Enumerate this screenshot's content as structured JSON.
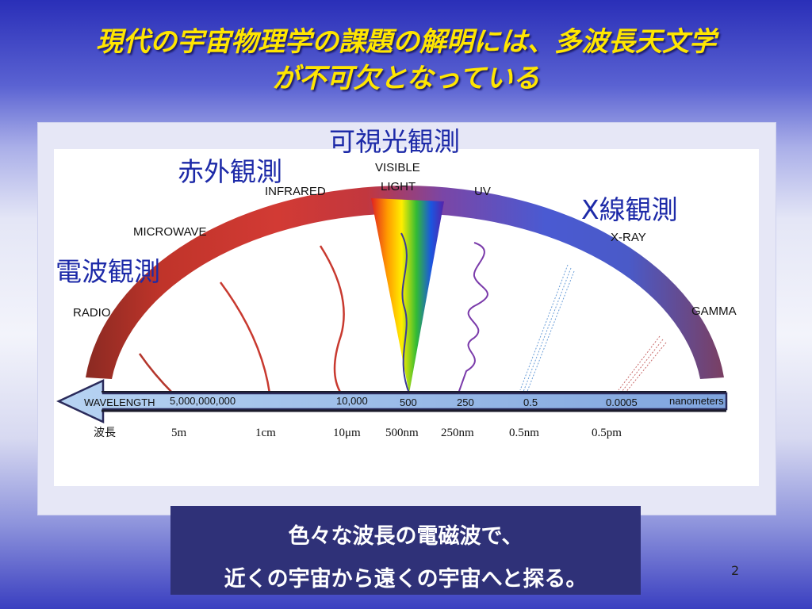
{
  "slide": {
    "title_line1": "現代の宇宙物理学の課題の解明には、多波長天文学",
    "title_line2": "が不可欠となっている",
    "page_number": "2"
  },
  "observation_labels": {
    "visible": "可視光観測",
    "infrared": "赤外観測",
    "xray": "X線観測",
    "radio": "電波観測"
  },
  "spectrum": {
    "bands": {
      "radio": "RADIO",
      "microwave": "MICROWAVE",
      "infrared": "INFRARED",
      "visible_1": "VISIBLE",
      "visible_2": "LIGHT",
      "uv": "UV",
      "xray": "X-RAY",
      "gamma": "GAMMA"
    },
    "axis_title": "WAVELENGTH",
    "axis_values": [
      "5,000,000,000",
      "10,000",
      "500",
      "250",
      "0.5",
      "0.0005"
    ],
    "axis_unit": "nanometers",
    "wavelength_header": "波長",
    "wavelength_values": [
      "5m",
      "1cm",
      "10μm",
      "500nm",
      "250nm",
      "0.5nm",
      "0.5pm"
    ]
  },
  "caption": {
    "line1": "色々な波長の電磁波で、",
    "line2": "近くの宇宙から遠くの宇宙へと探る。"
  },
  "colors": {
    "title": "#ffe600",
    "label_blue": "#1d2aa8",
    "caption_bg": "#2f3178"
  }
}
